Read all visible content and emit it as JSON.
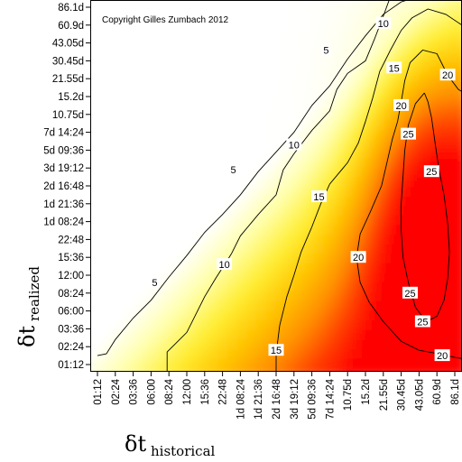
{
  "chart_data": {
    "type": "heatmap",
    "annotation": "Copyright Gilles Zumbach 2012",
    "xlabel": {
      "symbol": "δt",
      "subscript": "historical"
    },
    "ylabel": {
      "symbol": "δt",
      "subscript": "realized"
    },
    "x_ticks": [
      "01:12",
      "02:24",
      "03:36",
      "06:00",
      "08:24",
      "12:00",
      "15:36",
      "22:48",
      "1d 08:24",
      "1d 21:36",
      "2d 16:48",
      "3d 19:12",
      "5d 09:36",
      "7d 14:24",
      "10.75d",
      "15.2d",
      "21.55d",
      "30.45d",
      "43.05d",
      "60.9d",
      "86.1d"
    ],
    "y_ticks": [
      "01:12",
      "02:24",
      "03:36",
      "06:00",
      "08:24",
      "12:00",
      "15:36",
      "22:48",
      "1d 08:24",
      "1d 21:36",
      "2d 16:48",
      "3d 19:12",
      "5d 09:36",
      "7d 14:24",
      "10.75d",
      "15.2d",
      "21.55d",
      "30.45d",
      "43.05d",
      "60.9d",
      "86.1d"
    ],
    "contour_levels": [
      5,
      10,
      15,
      20,
      25
    ],
    "contour_labels": [
      {
        "text": "5",
        "x": 3.2,
        "y": 4.6
      },
      {
        "text": "5",
        "x": 7.6,
        "y": 10.9
      },
      {
        "text": "5",
        "x": 12.8,
        "y": 17.6
      },
      {
        "text": "10",
        "x": 7.1,
        "y": 5.6
      },
      {
        "text": "10",
        "x": 11.0,
        "y": 12.3
      },
      {
        "text": "10",
        "x": 16.0,
        "y": 19.1
      },
      {
        "text": "15",
        "x": 10.0,
        "y": 0.8
      },
      {
        "text": "15",
        "x": 12.4,
        "y": 9.4
      },
      {
        "text": "15",
        "x": 16.6,
        "y": 16.6
      },
      {
        "text": "20",
        "x": 14.6,
        "y": 6.0
      },
      {
        "text": "20",
        "x": 17.0,
        "y": 14.5
      },
      {
        "text": "20",
        "x": 19.6,
        "y": 16.2
      },
      {
        "text": "20",
        "x": 19.3,
        "y": 0.5
      },
      {
        "text": "25",
        "x": 17.4,
        "y": 12.9
      },
      {
        "text": "25",
        "x": 18.7,
        "y": 10.8
      },
      {
        "text": "25",
        "x": 17.5,
        "y": 4.0
      },
      {
        "text": "25",
        "x": 18.2,
        "y": 2.4
      }
    ],
    "contours": [
      {
        "level": 5,
        "points": [
          [
            0,
            0.5
          ],
          [
            0.5,
            0.6
          ],
          [
            1,
            1.4
          ],
          [
            2,
            2.6
          ],
          [
            3,
            3.6
          ],
          [
            4,
            4.9
          ],
          [
            5,
            6.1
          ],
          [
            6,
            7.4
          ],
          [
            7,
            8.4
          ],
          [
            8,
            9.5
          ],
          [
            9,
            10.8
          ],
          [
            10,
            11.9
          ],
          [
            11,
            13.0
          ],
          [
            12,
            14.5
          ],
          [
            13,
            15.6
          ],
          [
            14,
            17.1
          ],
          [
            15,
            18.4
          ],
          [
            16,
            19.6
          ],
          [
            17,
            20.3
          ],
          [
            18,
            20.6
          ]
        ]
      },
      {
        "level": 10,
        "points": [
          [
            3.9,
            -0.6
          ],
          [
            3.9,
            0.7
          ],
          [
            5,
            1.8
          ],
          [
            6,
            3.8
          ],
          [
            6.6,
            4.8
          ],
          [
            7.5,
            6.2
          ],
          [
            8,
            7.2
          ],
          [
            9,
            8.4
          ],
          [
            10,
            9.5
          ],
          [
            10.4,
            10.9
          ],
          [
            11,
            11.8
          ],
          [
            12,
            13.1
          ],
          [
            13,
            14.2
          ],
          [
            13.4,
            15.4
          ],
          [
            14,
            16.3
          ],
          [
            15,
            17.0
          ],
          [
            15.5,
            18.2
          ],
          [
            16,
            19.5
          ],
          [
            16.4,
            20.6
          ]
        ]
      },
      {
        "level": 15,
        "points": [
          [
            10,
            -0.6
          ],
          [
            10,
            0.6
          ],
          [
            10.2,
            2.2
          ],
          [
            10.6,
            3.8
          ],
          [
            11,
            5.0
          ],
          [
            11.4,
            6.3
          ],
          [
            12,
            7.7
          ],
          [
            12.5,
            9.0
          ],
          [
            13,
            10.1
          ],
          [
            14,
            11.3
          ],
          [
            14.6,
            12.4
          ],
          [
            15,
            13.6
          ],
          [
            15.4,
            14.9
          ],
          [
            15.8,
            16.4
          ],
          [
            16.4,
            17.6
          ],
          [
            17,
            18.7
          ],
          [
            17.6,
            19.4
          ],
          [
            18.5,
            19.9
          ],
          [
            19.5,
            19.6
          ],
          [
            20.4,
            19.0
          ],
          [
            20.7,
            18.4
          ]
        ]
      },
      {
        "level": 20,
        "points": [
          [
            20.7,
            0.3
          ],
          [
            20,
            0.4
          ],
          [
            19.1,
            0.6
          ],
          [
            18,
            0.8
          ],
          [
            17,
            1.3
          ],
          [
            16,
            2.4
          ],
          [
            15.2,
            3.5
          ],
          [
            14.7,
            4.6
          ],
          [
            14.5,
            6.0
          ],
          [
            14.7,
            7.3
          ],
          [
            15.3,
            8.6
          ],
          [
            15.9,
            10.0
          ],
          [
            16.2,
            11.3
          ],
          [
            16.5,
            12.6
          ],
          [
            16.8,
            13.6
          ],
          [
            17.0,
            14.7
          ],
          [
            17.2,
            15.9
          ],
          [
            17.5,
            16.9
          ],
          [
            18.2,
            17.6
          ],
          [
            19.0,
            17.4
          ],
          [
            19.6,
            16.2
          ],
          [
            20.2,
            15.4
          ],
          [
            20.7,
            15.1
          ]
        ]
      },
      {
        "level": 25,
        "points": [
          [
            18.3,
            15.2
          ],
          [
            17.8,
            14.6
          ],
          [
            17.4,
            13.4
          ],
          [
            17.2,
            12.0
          ],
          [
            17.1,
            10.5
          ],
          [
            17.0,
            9.0
          ],
          [
            17.0,
            7.5
          ],
          [
            17.1,
            6.0
          ],
          [
            17.4,
            4.6
          ],
          [
            17.8,
            3.2
          ],
          [
            18.4,
            2.4
          ],
          [
            19.0,
            2.7
          ],
          [
            19.4,
            3.6
          ],
          [
            19.6,
            4.8
          ],
          [
            19.7,
            6.3
          ],
          [
            19.6,
            7.9
          ],
          [
            19.4,
            9.5
          ],
          [
            19.1,
            11.0
          ],
          [
            18.9,
            12.4
          ],
          [
            18.7,
            13.8
          ],
          [
            18.5,
            14.7
          ],
          [
            18.3,
            15.2
          ]
        ]
      }
    ],
    "colormap": [
      "#ffffff",
      "#ffffaa",
      "#ffee33",
      "#ffc400",
      "#ff8f00",
      "#ff3c00",
      "#ff0000"
    ],
    "value_peak": 27,
    "grid": false,
    "legend": "none"
  }
}
